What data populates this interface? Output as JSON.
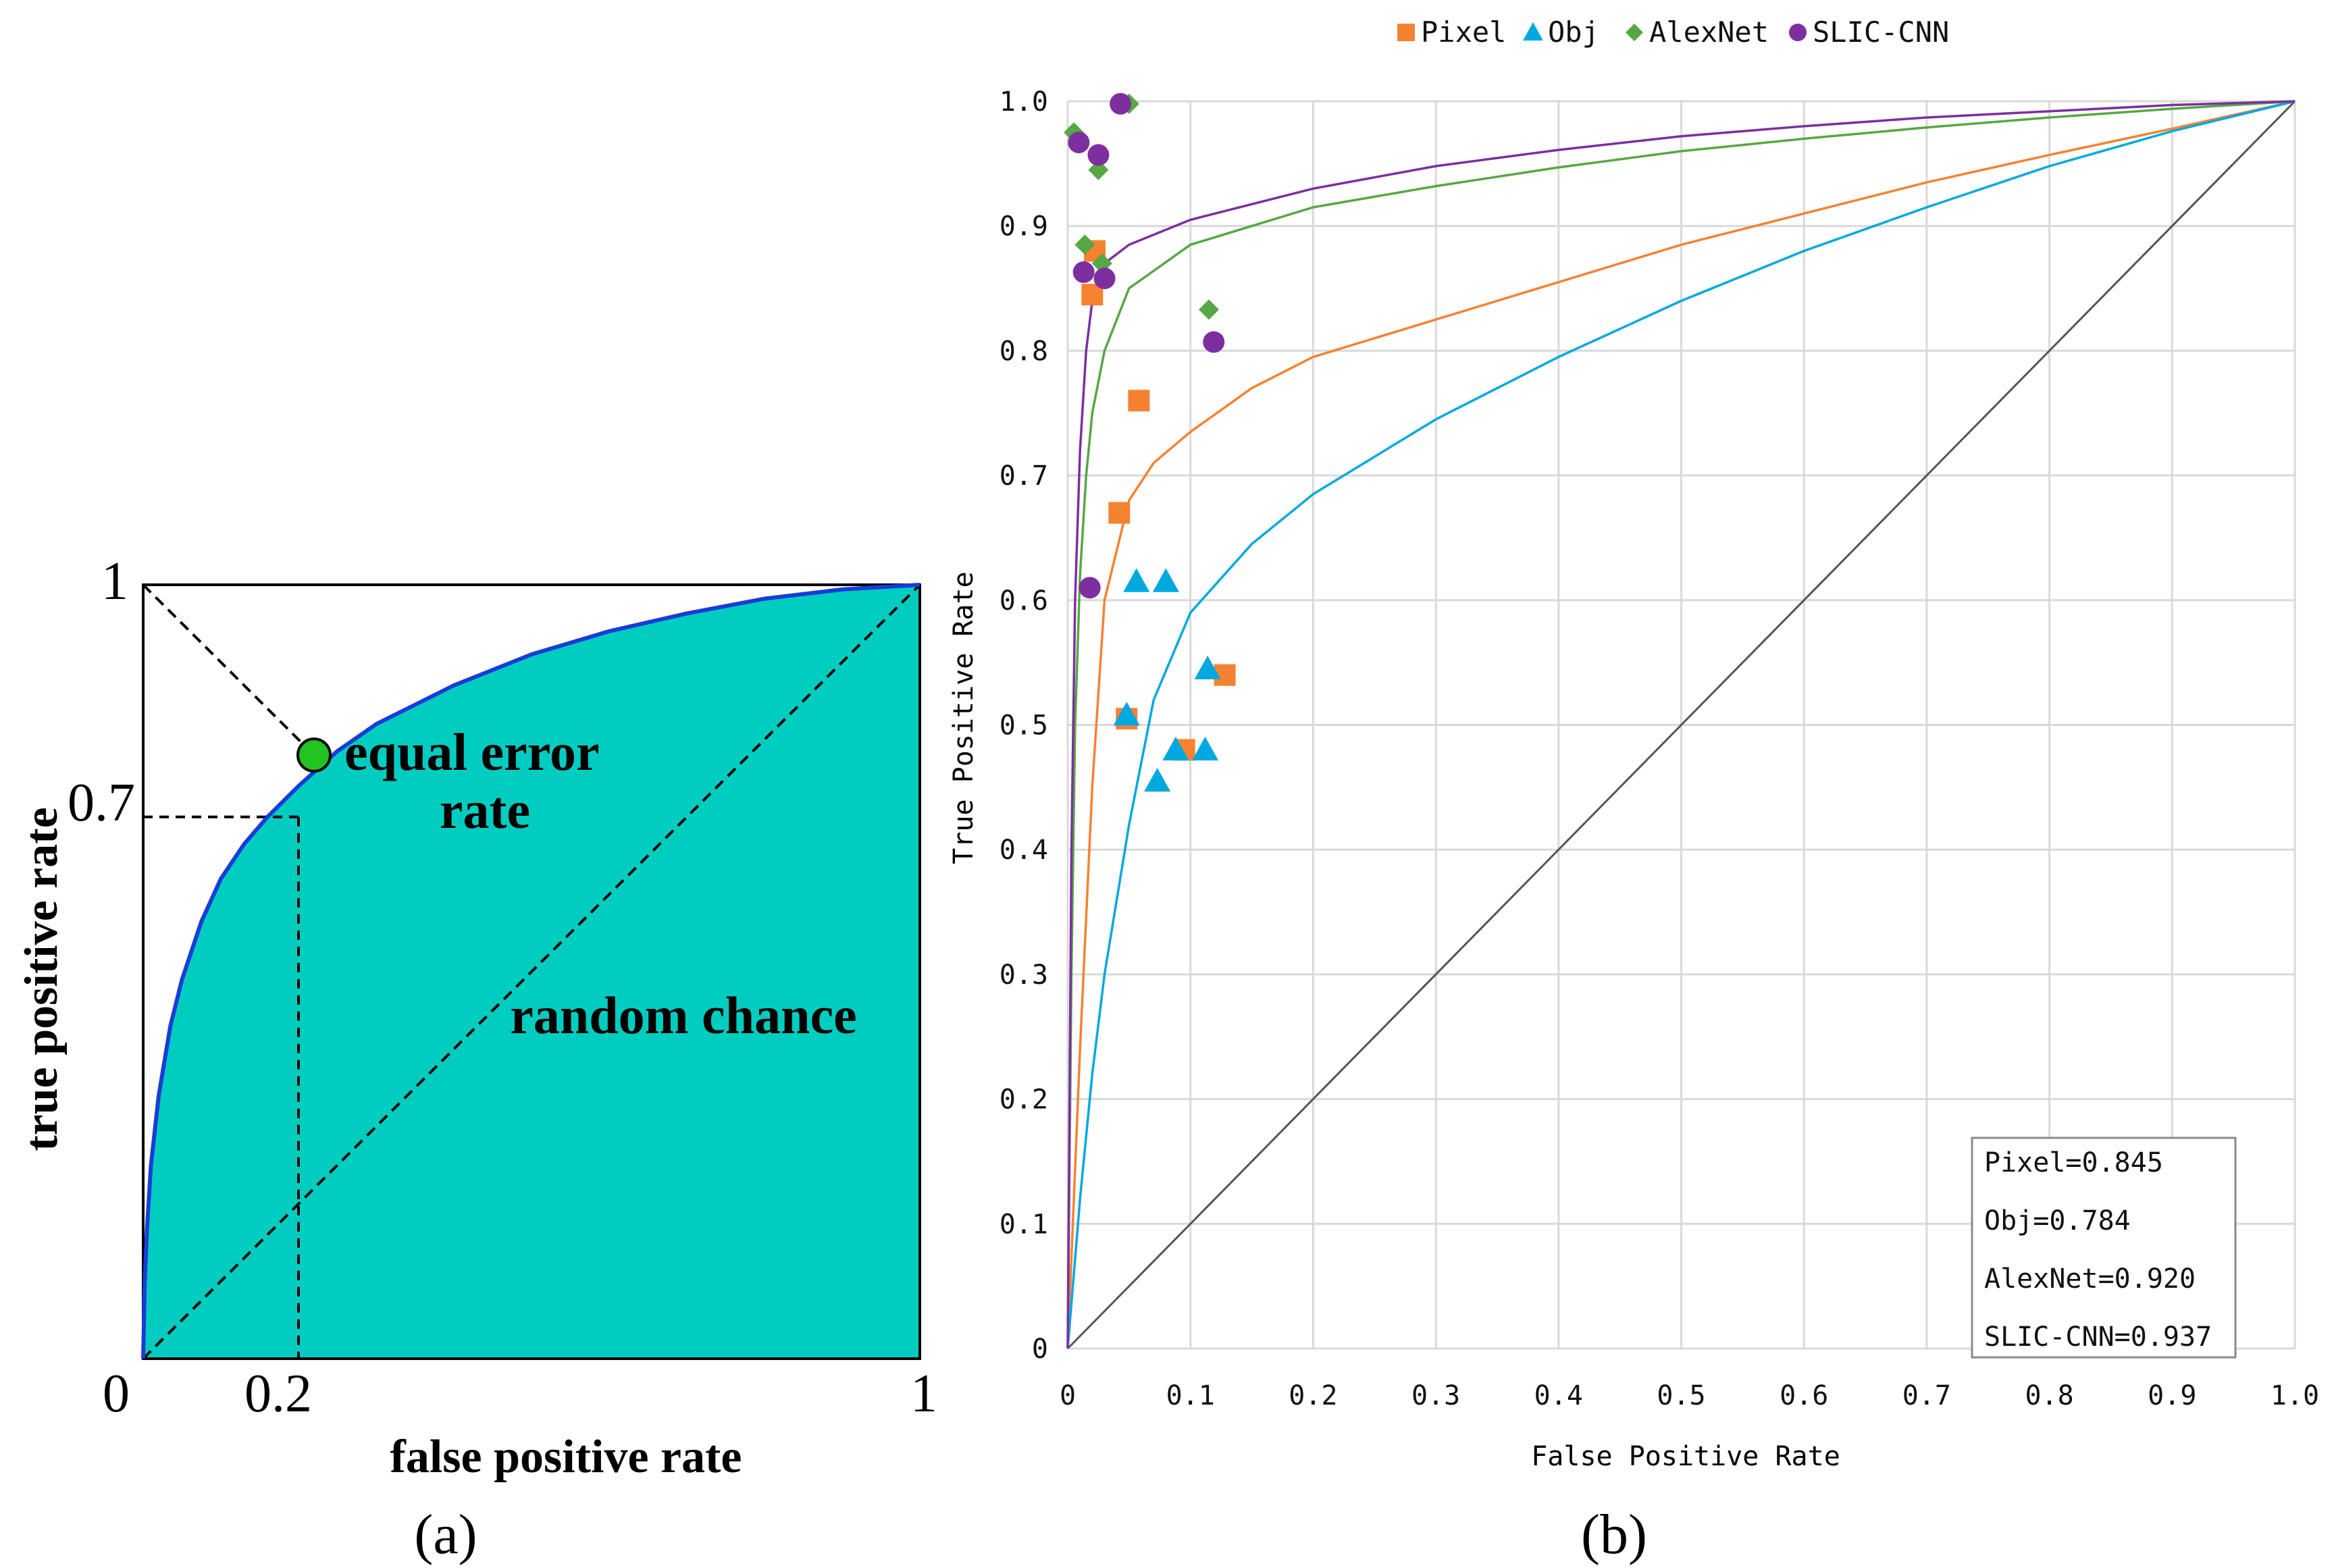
{
  "chart_data": [
    {
      "panel_label": "(a)",
      "type": "area",
      "title": "",
      "xlabel": "false positive rate",
      "ylabel": "true positive rate",
      "xlim": [
        0,
        1
      ],
      "ylim": [
        0,
        1
      ],
      "x_tick_labels": [
        "0",
        "0.2",
        "1"
      ],
      "y_tick_labels": [
        "1",
        "0.7"
      ],
      "fill_color": "#00CDC0",
      "curve_color": "#1a3cd8",
      "roc_curve": {
        "x": [
          0,
          0.002,
          0.005,
          0.01,
          0.02,
          0.035,
          0.05,
          0.075,
          0.1,
          0.13,
          0.16,
          0.2,
          0.25,
          0.3,
          0.4,
          0.5,
          0.6,
          0.7,
          0.8,
          0.9,
          1.0
        ],
        "y": [
          0,
          0.1,
          0.17,
          0.25,
          0.34,
          0.43,
          0.49,
          0.565,
          0.62,
          0.665,
          0.7,
          0.74,
          0.785,
          0.82,
          0.87,
          0.91,
          0.94,
          0.963,
          0.982,
          0.994,
          1.0
        ]
      },
      "equal_error_point": {
        "x": 0.22,
        "y": 0.78,
        "color": "#22c422"
      },
      "reference_point": {
        "x": 0.2,
        "y": 0.7
      },
      "annotations": {
        "equal_error_rate": [
          "equal error",
          "rate"
        ],
        "random_chance": "random chance"
      }
    },
    {
      "panel_label": "(b)",
      "type": "scatter",
      "title": "",
      "xlabel": "False Positive Rate",
      "ylabel": "True Positive Rate",
      "xlim": [
        0,
        1
      ],
      "ylim": [
        0,
        1
      ],
      "grid": true,
      "x_tick_labels": [
        "0",
        "0.1",
        "0.2",
        "0.3",
        "0.4",
        "0.5",
        "0.6",
        "0.7",
        "0.8",
        "0.9",
        "1.0"
      ],
      "y_tick_labels": [
        "0",
        "0.1",
        "0.2",
        "0.3",
        "0.4",
        "0.5",
        "0.6",
        "0.7",
        "0.8",
        "0.9",
        "1.0"
      ],
      "legend_position": "top-center",
      "series": [
        {
          "name": "Pixel",
          "marker": "square",
          "color": "#F58231",
          "points": [
            [
              0.02,
              0.845
            ],
            [
              0.022,
              0.88
            ],
            [
              0.058,
              0.76
            ],
            [
              0.042,
              0.67
            ],
            [
              0.048,
              0.505
            ],
            [
              0.095,
              0.48
            ],
            [
              0.128,
              0.54
            ]
          ],
          "fit_curve": {
            "x": [
              0,
              0.005,
              0.01,
              0.02,
              0.03,
              0.05,
              0.07,
              0.1,
              0.15,
              0.2,
              0.3,
              0.4,
              0.5,
              0.6,
              0.7,
              0.8,
              0.9,
              1.0
            ],
            "y": [
              0,
              0.12,
              0.24,
              0.45,
              0.6,
              0.68,
              0.71,
              0.735,
              0.77,
              0.795,
              0.825,
              0.855,
              0.885,
              0.91,
              0.935,
              0.957,
              0.978,
              1.0
            ]
          }
        },
        {
          "name": "Obj",
          "marker": "triangle",
          "color": "#00A8E0",
          "points": [
            [
              0.056,
              0.615
            ],
            [
              0.08,
              0.615
            ],
            [
              0.114,
              0.545
            ],
            [
              0.048,
              0.508
            ],
            [
              0.088,
              0.48
            ],
            [
              0.112,
              0.48
            ],
            [
              0.073,
              0.455
            ]
          ],
          "fit_curve": {
            "x": [
              0,
              0.005,
              0.01,
              0.02,
              0.03,
              0.05,
              0.07,
              0.1,
              0.15,
              0.2,
              0.3,
              0.4,
              0.5,
              0.6,
              0.7,
              0.8,
              0.9,
              1.0
            ],
            "y": [
              0,
              0.06,
              0.12,
              0.22,
              0.3,
              0.42,
              0.52,
              0.59,
              0.645,
              0.685,
              0.745,
              0.795,
              0.84,
              0.88,
              0.915,
              0.948,
              0.976,
              1.0
            ]
          }
        },
        {
          "name": "AlexNet",
          "marker": "diamond",
          "color": "#56A844",
          "points": [
            [
              0.005,
              0.975
            ],
            [
              0.025,
              0.945
            ],
            [
              0.05,
              0.998
            ],
            [
              0.014,
              0.885
            ],
            [
              0.028,
              0.87
            ],
            [
              0.115,
              0.833
            ]
          ],
          "fit_curve": {
            "x": [
              0,
              0.003,
              0.006,
              0.01,
              0.015,
              0.02,
              0.03,
              0.05,
              0.1,
              0.2,
              0.3,
              0.4,
              0.5,
              0.6,
              0.7,
              0.8,
              0.9,
              1.0
            ],
            "y": [
              0,
              0.3,
              0.5,
              0.62,
              0.7,
              0.75,
              0.8,
              0.85,
              0.885,
              0.915,
              0.932,
              0.947,
              0.96,
              0.97,
              0.979,
              0.987,
              0.994,
              1.0
            ]
          }
        },
        {
          "name": "SLIC-CNN",
          "marker": "circle",
          "color": "#7D2FA0",
          "points": [
            [
              0.043,
              0.998
            ],
            [
              0.009,
              0.967
            ],
            [
              0.025,
              0.957
            ],
            [
              0.013,
              0.863
            ],
            [
              0.03,
              0.858
            ],
            [
              0.119,
              0.807
            ],
            [
              0.018,
              0.61
            ]
          ],
          "fit_curve": {
            "x": [
              0,
              0.003,
              0.006,
              0.01,
              0.015,
              0.02,
              0.03,
              0.05,
              0.1,
              0.2,
              0.3,
              0.4,
              0.5,
              0.6,
              0.7,
              0.8,
              0.9,
              1.0
            ],
            "y": [
              0,
              0.4,
              0.6,
              0.72,
              0.8,
              0.84,
              0.87,
              0.885,
              0.905,
              0.93,
              0.948,
              0.961,
              0.972,
              0.98,
              0.987,
              0.992,
              0.997,
              1.0
            ]
          }
        }
      ],
      "auc_box": [
        "Pixel=0.845",
        "Obj=0.784",
        "AlexNet=0.920",
        "SLIC-CNN=0.937"
      ]
    }
  ]
}
